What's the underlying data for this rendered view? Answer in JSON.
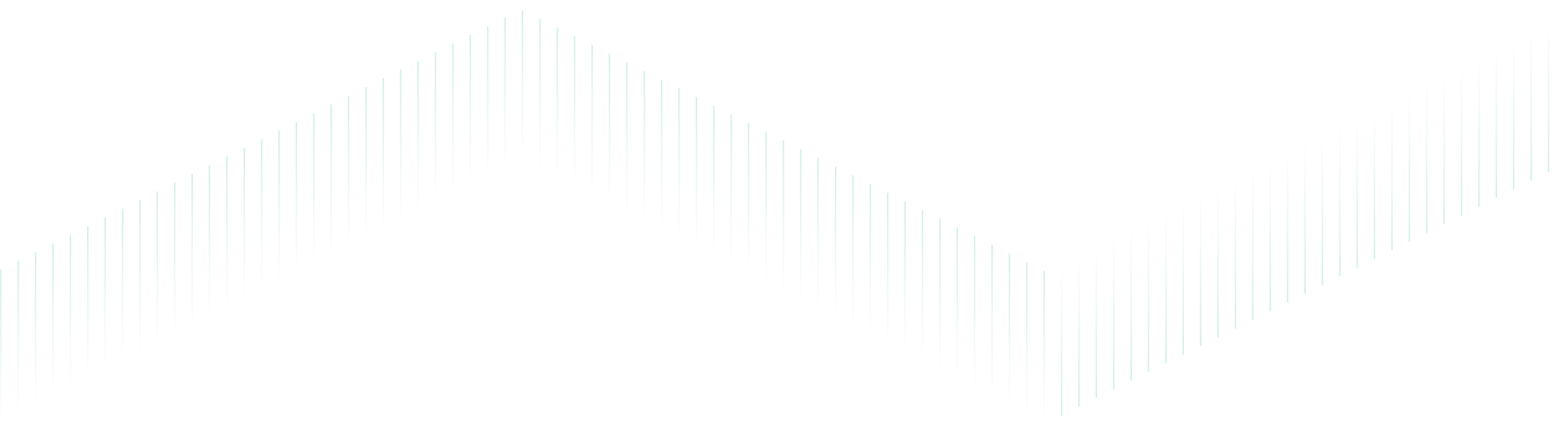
{
  "background": {
    "pattern": "vertical-line-wave",
    "colors": {
      "page": "#ffffff",
      "line": "#cdeee7"
    }
  }
}
